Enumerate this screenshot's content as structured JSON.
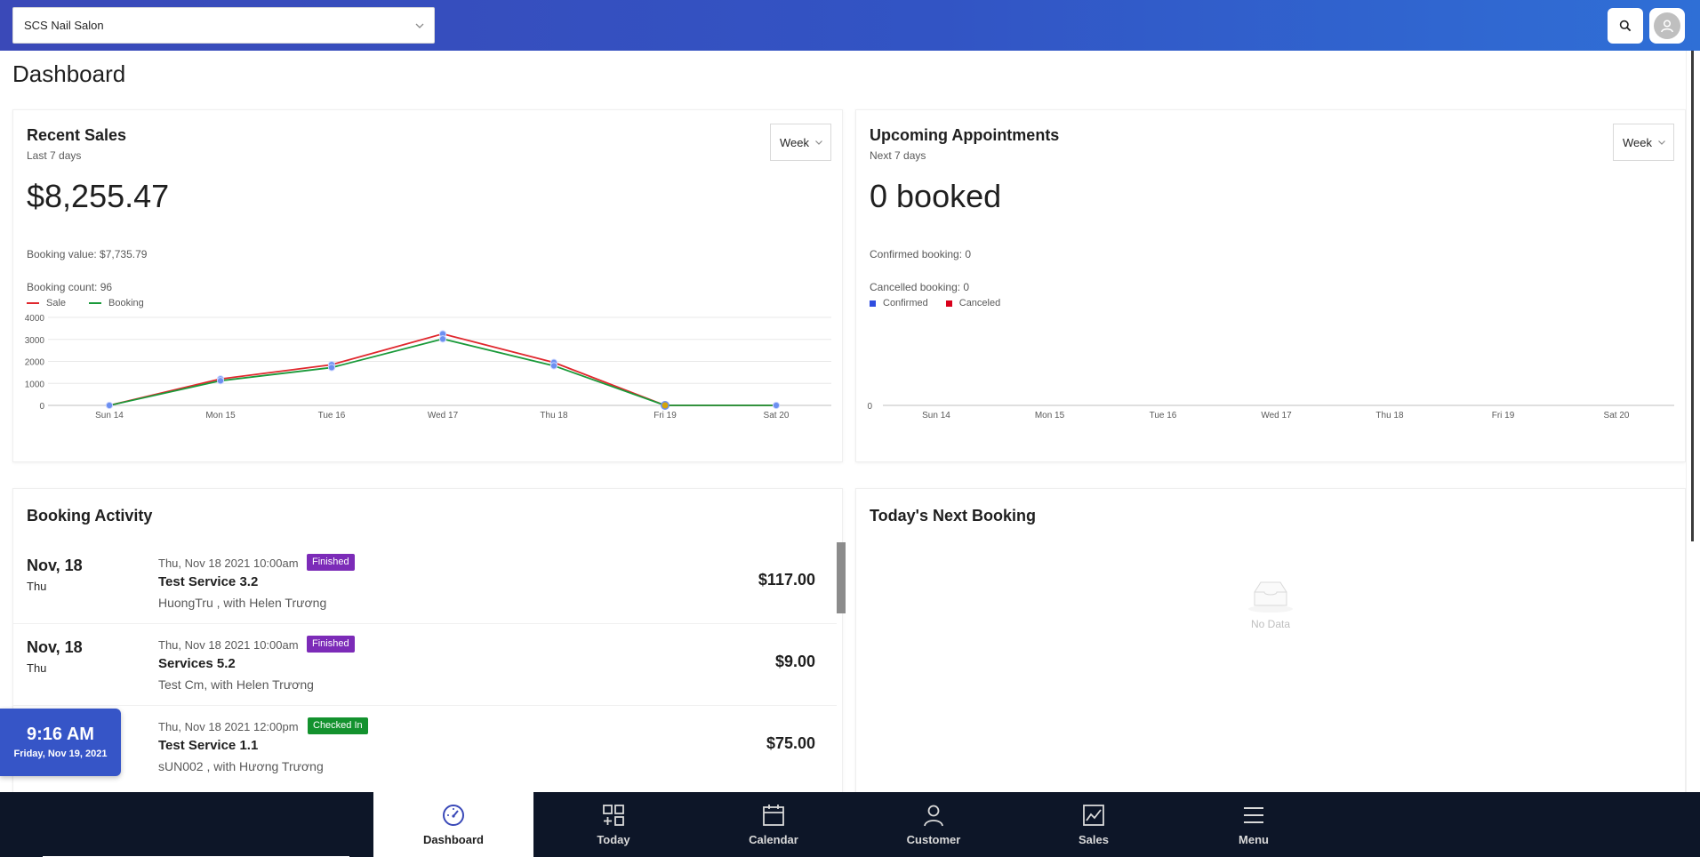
{
  "header": {
    "salon_name": "SCS Nail Salon",
    "icons": [
      "chevron-down-icon",
      "search-icon",
      "user-icon"
    ]
  },
  "page": {
    "title": "Dashboard"
  },
  "recent_sales": {
    "title": "Recent Sales",
    "subtitle": "Last 7 days",
    "range": "Week",
    "total": "$8,255.47",
    "booking_value": "Booking value: $7,735.79",
    "booking_count": "Booking count: 96",
    "legend": [
      {
        "name": "Sale",
        "color": "#e0282e"
      },
      {
        "name": "Booking",
        "color": "#1a9a3a"
      }
    ]
  },
  "upcoming": {
    "title": "Upcoming Appointments",
    "subtitle": "Next 7 days",
    "range": "Week",
    "total": "0 booked",
    "confirmed": "Confirmed booking: 0",
    "cancelled": "Cancelled booking: 0",
    "legend": [
      {
        "name": "Confirmed",
        "color": "#2f4de0"
      },
      {
        "name": "Canceled",
        "color": "#d9001b"
      }
    ]
  },
  "chart_data": [
    {
      "type": "line",
      "categories": [
        "Sun 14",
        "Mon 15",
        "Tue 16",
        "Wed 17",
        "Thu 18",
        "Fri 19",
        "Sat 20"
      ],
      "series": [
        {
          "name": "Sale",
          "values": [
            0,
            1200,
            1850,
            3250,
            1950,
            0,
            0
          ]
        },
        {
          "name": "Booking",
          "values": [
            0,
            1120,
            1720,
            3020,
            1800,
            0,
            0
          ]
        }
      ],
      "yticks": [
        0,
        1000,
        2000,
        3000,
        4000
      ],
      "ylim": [
        0,
        4000
      ],
      "grid": true,
      "legend_position": "top-left"
    },
    {
      "type": "bar",
      "categories": [
        "Sun 14",
        "Mon 15",
        "Tue 16",
        "Wed 17",
        "Thu 18",
        "Fri 19",
        "Sat 20"
      ],
      "series": [
        {
          "name": "Confirmed",
          "values": [
            0,
            0,
            0,
            0,
            0,
            0,
            0
          ]
        },
        {
          "name": "Canceled",
          "values": [
            0,
            0,
            0,
            0,
            0,
            0,
            0
          ]
        }
      ],
      "yticks": [
        0
      ],
      "legend_position": "top-left"
    }
  ],
  "booking_activity": {
    "title": "Booking Activity",
    "items": [
      {
        "date": "Nov, 18",
        "dow": "Thu",
        "time": "Thu, Nov 18 2021 10:00am",
        "status": "Finished",
        "status_color": "#7c2bb8",
        "service": "Test Service 3.2",
        "client": "HuongTru , with Helen Trương",
        "price": "$117.00"
      },
      {
        "date": "Nov, 18",
        "dow": "Thu",
        "time": "Thu, Nov 18 2021 10:00am",
        "status": "Finished",
        "status_color": "#7c2bb8",
        "service": "Services 5.2",
        "client": "Test Cm, with Helen Trương",
        "price": "$9.00"
      },
      {
        "date": "",
        "dow": "",
        "time": "Thu, Nov 18 2021 12:00pm",
        "status": "Checked In",
        "status_color": "#13922e",
        "service": "Test Service 1.1",
        "client": "sUN002 , with Hương Trương",
        "price": "$75.00"
      }
    ]
  },
  "next_booking": {
    "title": "Today's Next Booking",
    "empty_text": "No Data"
  },
  "clock": {
    "time": "9:16 AM",
    "date": "Friday, Nov 19, 2021"
  },
  "bottom_nav": [
    {
      "label": "Dashboard",
      "icon": "dashboard-icon",
      "active": true
    },
    {
      "label": "Today",
      "icon": "grid-plus-icon",
      "active": false
    },
    {
      "label": "Calendar",
      "icon": "calendar-icon",
      "active": false
    },
    {
      "label": "Customer",
      "icon": "user-icon",
      "active": false
    },
    {
      "label": "Sales",
      "icon": "chart-icon",
      "active": false
    },
    {
      "label": "Menu",
      "icon": "menu-icon",
      "active": false
    }
  ]
}
